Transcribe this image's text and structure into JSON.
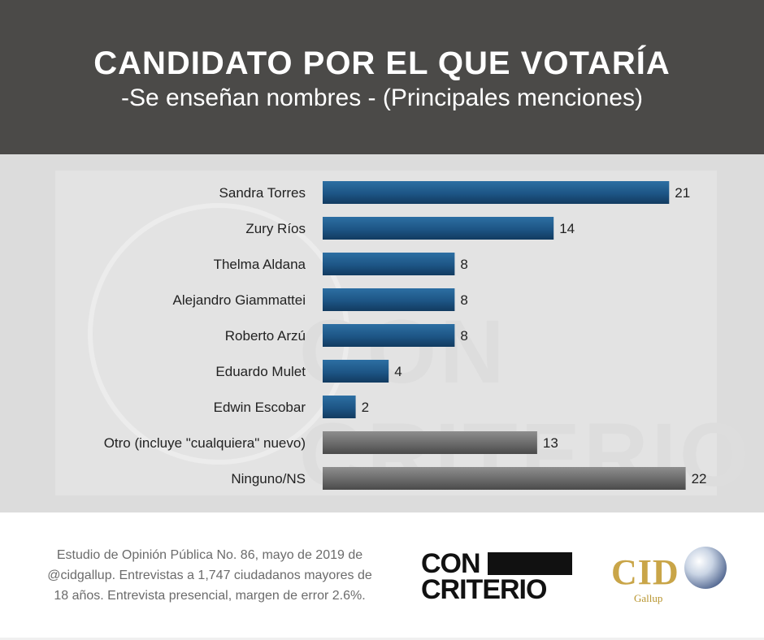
{
  "header": {
    "title": "CANDIDATO POR EL QUE VOTARÍA",
    "subtitle": "-Se enseñan nombres - (Principales menciones)"
  },
  "colors": {
    "header_bg": "#4b4a48",
    "bar_blue": "#1f5a8a",
    "bar_gray": "#6f6f6f"
  },
  "chart_data": {
    "type": "bar",
    "orientation": "horizontal",
    "categories": [
      "Sandra Torres",
      "Zury Ríos",
      "Thelma Aldana",
      "Alejandro Giammattei",
      "Roberto Arzú",
      "Eduardo Mulet",
      "Edwin Escobar",
      "Otro (incluye \"cualquiera\" nuevo)",
      "Ninguno/NS"
    ],
    "values": [
      21,
      14,
      8,
      8,
      8,
      4,
      2,
      13,
      22
    ],
    "bar_colors": [
      "blue",
      "blue",
      "blue",
      "blue",
      "blue",
      "blue",
      "blue",
      "gray",
      "gray"
    ],
    "title": "CANDIDATO POR EL QUE VOTARÍA",
    "subtitle": "-Se enseñan nombres - (Principales menciones)",
    "xlim": [
      0,
      22
    ],
    "data_labels": true,
    "grid": false
  },
  "watermark": "CON CRITERIO",
  "footer": {
    "source_lines": [
      "Estudio de Opinión Pública No. 86, mayo de 2019 de",
      "@cidgallup.  Entrevistas a 1,747 ciudadanos mayores de",
      "18 años.  Entrevista presencial, margen de error 2.6%."
    ],
    "logo_concriterio": [
      "CON",
      "CRITERIO"
    ],
    "logo_cid": "CID",
    "logo_cid_sub": "Gallup"
  }
}
